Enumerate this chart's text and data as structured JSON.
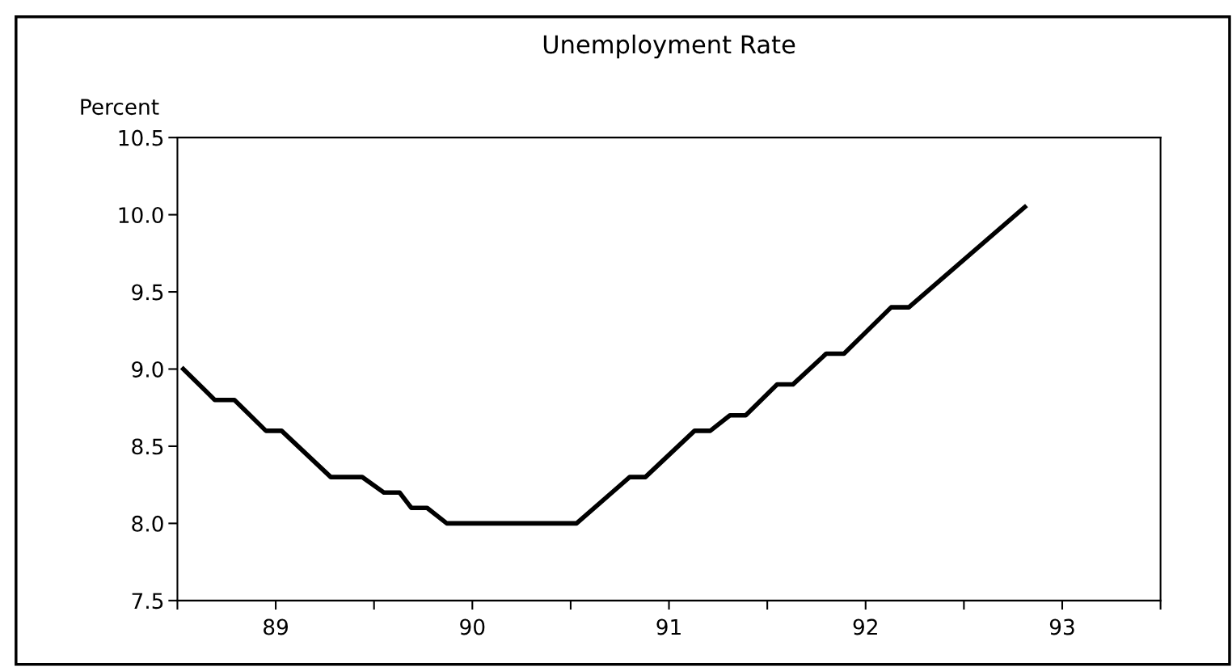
{
  "chart_data": {
    "type": "line",
    "title": "Unemployment Rate",
    "ylabel": "Percent",
    "x": [
      88.53,
      88.69,
      88.79,
      88.95,
      89.03,
      89.28,
      89.44,
      89.55,
      89.63,
      89.69,
      89.77,
      89.87,
      90.53,
      90.8,
      90.88,
      91.13,
      91.21,
      91.31,
      91.39,
      91.55,
      91.63,
      91.8,
      91.89,
      92.13,
      92.22,
      92.81
    ],
    "series": [
      {
        "color": "#000000",
        "values": [
          9.0,
          8.8,
          8.8,
          8.6,
          8.6,
          8.3,
          8.3,
          8.2,
          8.2,
          8.1,
          8.1,
          8.0,
          8.0,
          8.3,
          8.3,
          8.6,
          8.6,
          8.7,
          8.7,
          8.9,
          8.9,
          9.1,
          9.1,
          9.4,
          9.4,
          10.05
        ]
      }
    ],
    "xlim": [
      88.5,
      93.5
    ],
    "xticks": [
      {
        "value": 88.5,
        "label": null
      },
      89,
      {
        "value": 89.5,
        "label": null
      },
      90,
      {
        "value": 90.5,
        "label": null
      },
      91,
      {
        "value": 91.5,
        "label": null
      },
      92,
      {
        "value": 92.5,
        "label": null
      },
      93,
      {
        "value": 93.5,
        "label": null
      }
    ],
    "ylim": [
      7.5,
      10.5
    ],
    "yticks": [
      {
        "value": 7.5,
        "label": "7.5"
      },
      {
        "value": 8.0,
        "label": "8.0"
      },
      {
        "value": 8.5,
        "label": "8.5"
      },
      {
        "value": 9.0,
        "label": "9.0"
      },
      {
        "value": 9.5,
        "label": "9.5"
      },
      {
        "value": 10.0,
        "label": "10.0"
      },
      {
        "value": 10.5,
        "label": "10.5"
      }
    ],
    "grid": false,
    "legend": false,
    "marker": "none",
    "line_style": "solid"
  }
}
